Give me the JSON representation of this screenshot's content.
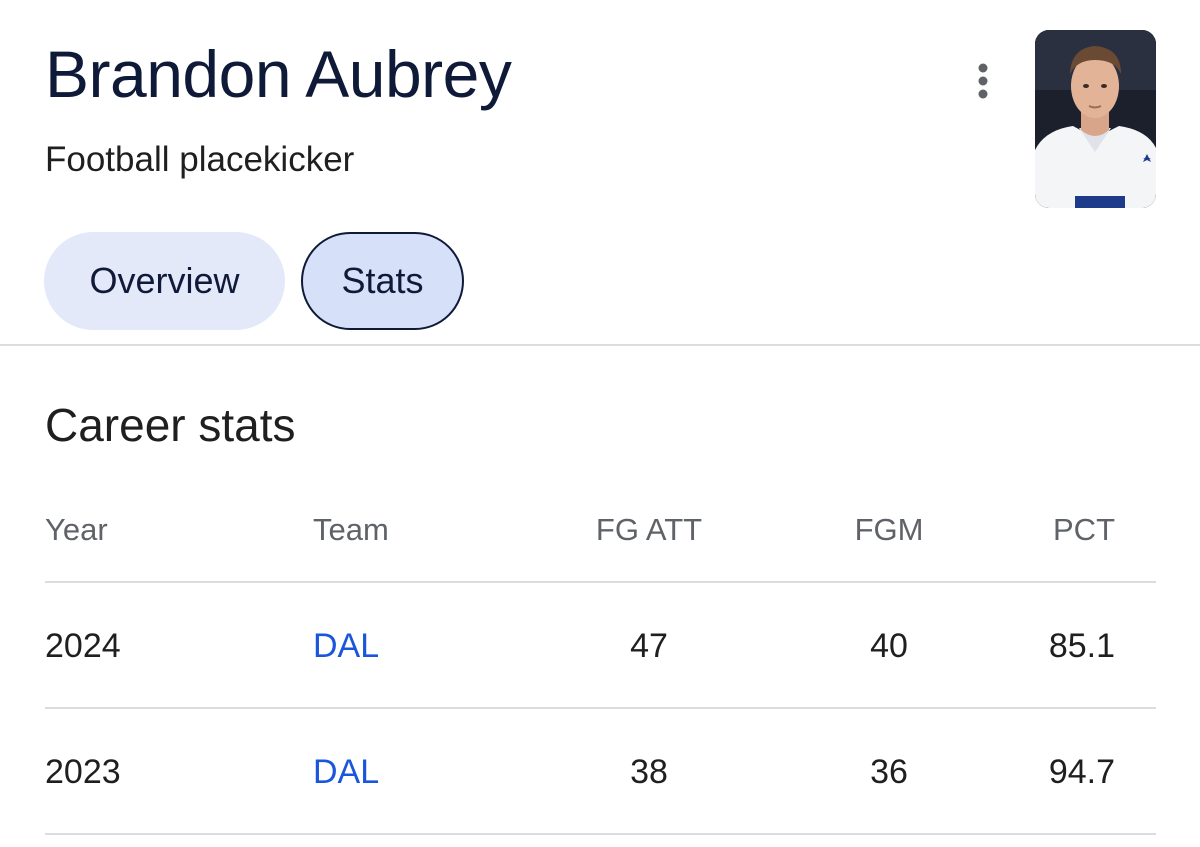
{
  "header": {
    "title": "Brandon Aubrey",
    "subtitle": "Football placekicker",
    "more_icon": "more-vertical-icon",
    "avatar_alt": "player photo"
  },
  "tabs": [
    {
      "label": "Overview",
      "selected": false
    },
    {
      "label": "Stats",
      "selected": true
    }
  ],
  "career_stats": {
    "title": "Career stats",
    "columns": [
      "Year",
      "Team",
      "FG ATT",
      "FGM",
      "PCT"
    ],
    "rows": [
      {
        "year": "2024",
        "team": "DAL",
        "fg_att": "47",
        "fgm": "40",
        "pct": "85.1"
      },
      {
        "year": "2023",
        "team": "DAL",
        "fg_att": "38",
        "fgm": "36",
        "pct": "94.7"
      }
    ]
  },
  "colors": {
    "title": "#0e1a38",
    "link": "#1a56db",
    "chip_bg": "#e4e9fa",
    "chip_selected_bg": "#d6e0f8",
    "divider": "#dadce0"
  }
}
